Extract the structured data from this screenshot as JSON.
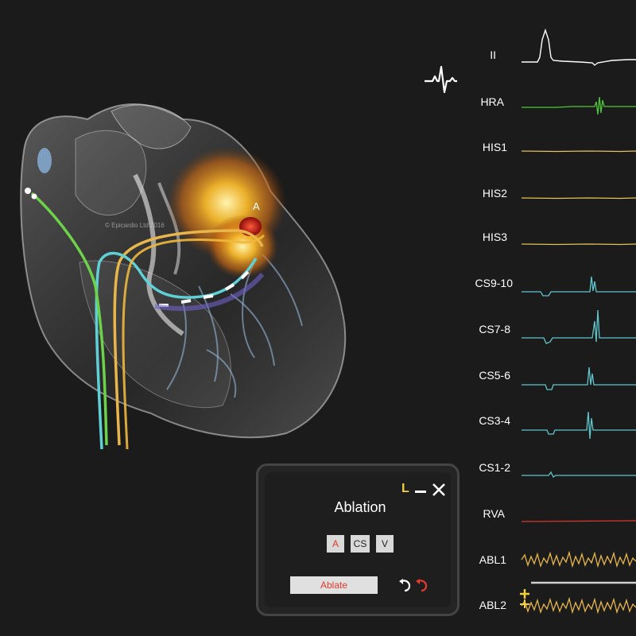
{
  "watermark": "© Epicardio Ltd 2016",
  "heart_label": "A",
  "icons": [
    "heartbeat-icon",
    "close-icon",
    "minimize-icon",
    "undo-icon",
    "redo-icon",
    "plus-icon"
  ],
  "leads": [
    {
      "label": "II",
      "color": "#ffffff"
    },
    {
      "label": "HRA",
      "color": "#4fc63a"
    },
    {
      "label": "HIS1",
      "color": "#e2c25a"
    },
    {
      "label": "HIS2",
      "color": "#e2c25a"
    },
    {
      "label": "HIS3",
      "color": "#e2c25a"
    },
    {
      "label": "CS9-10",
      "color": "#5fc6cc"
    },
    {
      "label": "CS7-8",
      "color": "#5fc6cc"
    },
    {
      "label": "CS5-6",
      "color": "#5fc6cc"
    },
    {
      "label": "CS3-4",
      "color": "#5fc6cc"
    },
    {
      "label": "CS1-2",
      "color": "#5fc6cc"
    },
    {
      "label": "RVA",
      "color": "#d8372a"
    },
    {
      "label": "ABL1",
      "color": "#e8b64a"
    },
    {
      "label": "ABL2",
      "color": "#e8b64a"
    }
  ],
  "panel": {
    "mode_letter": "L",
    "title": "Ablation",
    "buttons": {
      "a": "A",
      "cs": "CS",
      "v": "V"
    },
    "ablate_label": "Ablate"
  },
  "colors": {
    "accent_yellow": "#f2d03b",
    "ablate_red": "#e53a2e",
    "background": "#1b1b1b"
  }
}
